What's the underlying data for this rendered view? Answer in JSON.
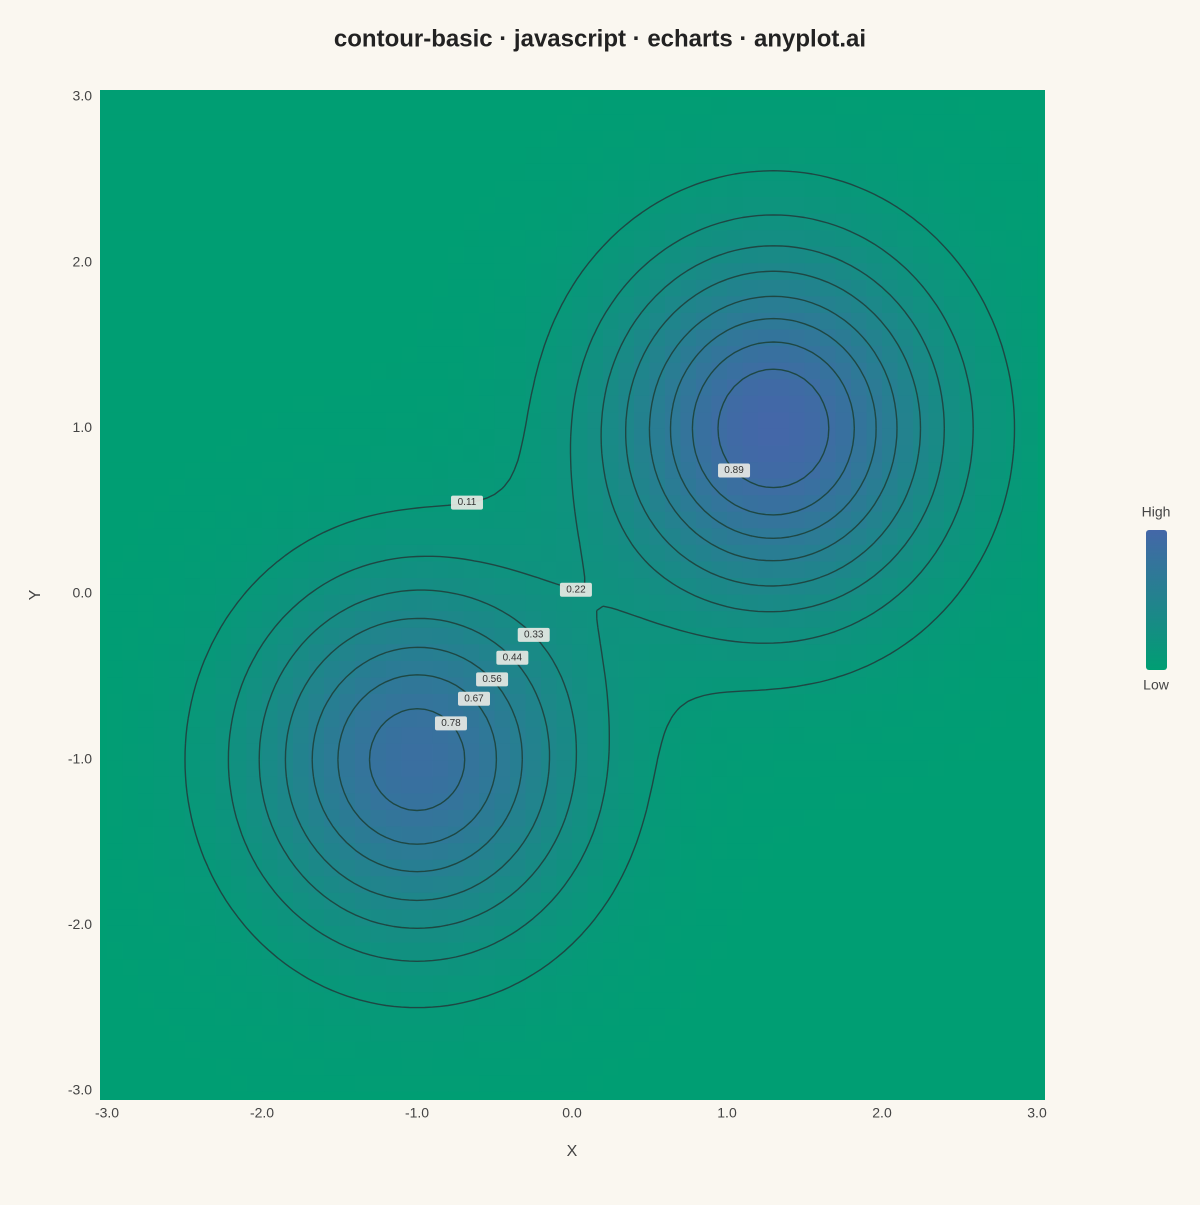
{
  "chart_data": {
    "type": "contour",
    "title": "contour-basic · javascript · echarts · anyplot.ai",
    "x_label": "X",
    "y_label": "Y",
    "xlim": [
      -3,
      3
    ],
    "ylim": [
      -3,
      3
    ],
    "xticks": [
      {
        "value": -3,
        "label": "-3.0"
      },
      {
        "value": -2,
        "label": "-2.0"
      },
      {
        "value": -1,
        "label": "-1.0"
      },
      {
        "value": 0,
        "label": "0.0"
      },
      {
        "value": 1,
        "label": "1.0"
      },
      {
        "value": 2,
        "label": "2.0"
      },
      {
        "value": 3,
        "label": "3.0"
      }
    ],
    "yticks": [
      {
        "value": -3,
        "label": "-3.0"
      },
      {
        "value": -2,
        "label": "-2.0"
      },
      {
        "value": -1,
        "label": "-1.0"
      },
      {
        "value": 0,
        "label": "0.0"
      },
      {
        "value": 1,
        "label": "1.0"
      },
      {
        "value": 2,
        "label": "2.0"
      },
      {
        "value": 3,
        "label": "3.0"
      }
    ],
    "peaks": [
      {
        "x": -1,
        "y": -1,
        "amplitude": 0.85,
        "sigma": 0.74
      },
      {
        "x": 1.3,
        "y": 1,
        "amplitude": 1,
        "sigma": 0.74
      }
    ],
    "levels": [
      0.11,
      0.22,
      0.33,
      0.44,
      0.56,
      0.67,
      0.78,
      0.89
    ],
    "colorbar": {
      "high_label": "High",
      "low_label": "Low",
      "low_color": "#009E73",
      "high_color": "#4467A8"
    }
  }
}
